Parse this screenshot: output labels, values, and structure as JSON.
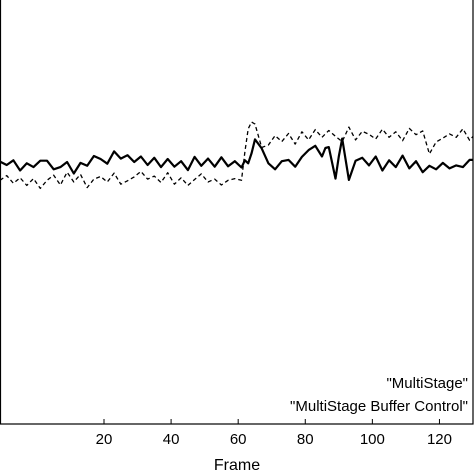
{
  "chart_data": {
    "type": "line",
    "title": "",
    "xlabel": "Frame",
    "ylabel": "",
    "xlim": [
      -11,
      130
    ],
    "ylim": [
      0,
      1
    ],
    "x_ticks": [
      20,
      40,
      60,
      80,
      100,
      120
    ],
    "x_tick_labels": [
      "20",
      "40",
      "60",
      "80",
      "100",
      "120"
    ],
    "legend": {
      "position": "bottom-right",
      "entries": [
        "\"MultiStage\"",
        "\"MultiStage Buffer Control\""
      ]
    },
    "series": [
      {
        "name": "\"MultiStage\"",
        "style": "solid",
        "x": [
          -11,
          -9,
          -7,
          -5,
          -3,
          -1,
          1,
          3,
          5,
          7,
          9,
          11,
          13,
          15,
          17,
          19,
          21,
          23,
          25,
          27,
          29,
          31,
          33,
          35,
          37,
          39,
          41,
          43,
          45,
          47,
          49,
          51,
          53,
          55,
          57,
          59,
          61,
          62,
          63,
          64,
          65,
          67,
          69,
          71,
          73,
          75,
          77,
          79,
          81,
          83,
          85,
          86,
          87,
          89,
          90,
          91,
          93,
          95,
          97,
          99,
          101,
          103,
          105,
          107,
          109,
          111,
          113,
          115,
          117,
          119,
          121,
          123,
          125,
          127,
          129,
          130
        ],
        "y": [
          0.616,
          0.608,
          0.619,
          0.595,
          0.612,
          0.603,
          0.618,
          0.618,
          0.598,
          0.603,
          0.615,
          0.588,
          0.613,
          0.606,
          0.629,
          0.622,
          0.611,
          0.64,
          0.623,
          0.631,
          0.615,
          0.628,
          0.608,
          0.625,
          0.603,
          0.622,
          0.604,
          0.617,
          0.596,
          0.627,
          0.606,
          0.623,
          0.604,
          0.626,
          0.605,
          0.617,
          0.602,
          0.619,
          0.612,
          0.636,
          0.668,
          0.647,
          0.612,
          0.598,
          0.617,
          0.62,
          0.604,
          0.627,
          0.643,
          0.653,
          0.628,
          0.648,
          0.65,
          0.576,
          0.628,
          0.67,
          0.573,
          0.618,
          0.625,
          0.607,
          0.628,
          0.595,
          0.619,
          0.603,
          0.63,
          0.6,
          0.617,
          0.591,
          0.606,
          0.598,
          0.613,
          0.6,
          0.607,
          0.603,
          0.62,
          0.62
        ]
      },
      {
        "name": "\"MultiStage Buffer Control\"",
        "style": "dashed",
        "x": [
          -11,
          -9,
          -7,
          -5,
          -3,
          -1,
          1,
          3,
          5,
          7,
          9,
          11,
          13,
          15,
          17,
          19,
          21,
          23,
          25,
          27,
          29,
          31,
          33,
          35,
          37,
          39,
          41,
          43,
          45,
          47,
          49,
          51,
          53,
          55,
          57,
          59,
          61,
          62,
          63,
          64,
          65,
          67,
          69,
          71,
          73,
          75,
          77,
          79,
          81,
          83,
          85,
          87,
          89,
          91,
          93,
          95,
          97,
          99,
          101,
          103,
          105,
          107,
          109,
          111,
          113,
          115,
          117,
          119,
          121,
          123,
          125,
          127,
          129,
          130
        ],
        "y": [
          0.572,
          0.583,
          0.565,
          0.578,
          0.56,
          0.576,
          0.553,
          0.572,
          0.584,
          0.561,
          0.591,
          0.568,
          0.586,
          0.555,
          0.575,
          0.581,
          0.568,
          0.589,
          0.563,
          0.571,
          0.58,
          0.593,
          0.575,
          0.582,
          0.567,
          0.59,
          0.563,
          0.578,
          0.56,
          0.574,
          0.587,
          0.568,
          0.575,
          0.561,
          0.572,
          0.576,
          0.572,
          0.639,
          0.693,
          0.709,
          0.704,
          0.649,
          0.655,
          0.677,
          0.663,
          0.682,
          0.657,
          0.686,
          0.667,
          0.691,
          0.673,
          0.689,
          0.675,
          0.663,
          0.697,
          0.667,
          0.687,
          0.68,
          0.669,
          0.692,
          0.673,
          0.686,
          0.665,
          0.694,
          0.679,
          0.688,
          0.634,
          0.662,
          0.671,
          0.681,
          0.673,
          0.693,
          0.666,
          0.675
        ]
      }
    ]
  }
}
